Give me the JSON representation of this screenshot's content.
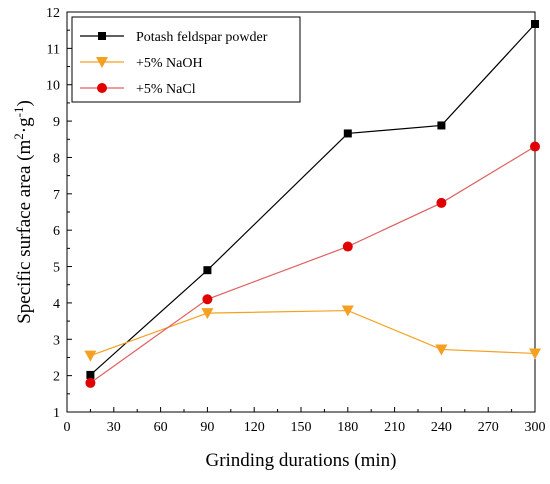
{
  "chart_data": {
    "type": "line",
    "xlabel": "Grinding durations (min)",
    "ylabel": "Specific surface area (m²·g⁻¹)",
    "ylabel_parts": {
      "main": "Specific surface area (m",
      "sup1": "2",
      "mid": "·g",
      "sup2": "-1",
      "end": ")"
    },
    "xlim": [
      0,
      300
    ],
    "ylim": [
      1,
      12
    ],
    "x_ticks": [
      0,
      30,
      60,
      90,
      120,
      150,
      180,
      210,
      240,
      270,
      300
    ],
    "y_ticks": [
      1,
      2,
      3,
      4,
      5,
      6,
      7,
      8,
      9,
      10,
      11,
      12
    ],
    "grid": false,
    "legend_position": "top-left",
    "series": [
      {
        "name": "Potash feldspar powder",
        "color": "#000000",
        "marker": "square",
        "x": [
          15,
          90,
          180,
          240,
          300
        ],
        "y": [
          2.02,
          4.9,
          8.66,
          8.88,
          11.67
        ]
      },
      {
        "name": "+5% NaOH",
        "color": "#F5A020",
        "marker": "triangle-down",
        "x": [
          15,
          90,
          180,
          240,
          300
        ],
        "y": [
          2.55,
          3.72,
          3.79,
          2.72,
          2.61
        ]
      },
      {
        "name": "+5% NaCl",
        "color": "#E00000",
        "marker": "circle",
        "line_color": "#E06060",
        "x": [
          15,
          90,
          180,
          240,
          300
        ],
        "y": [
          1.8,
          4.1,
          5.55,
          6.75,
          8.3
        ]
      }
    ]
  }
}
